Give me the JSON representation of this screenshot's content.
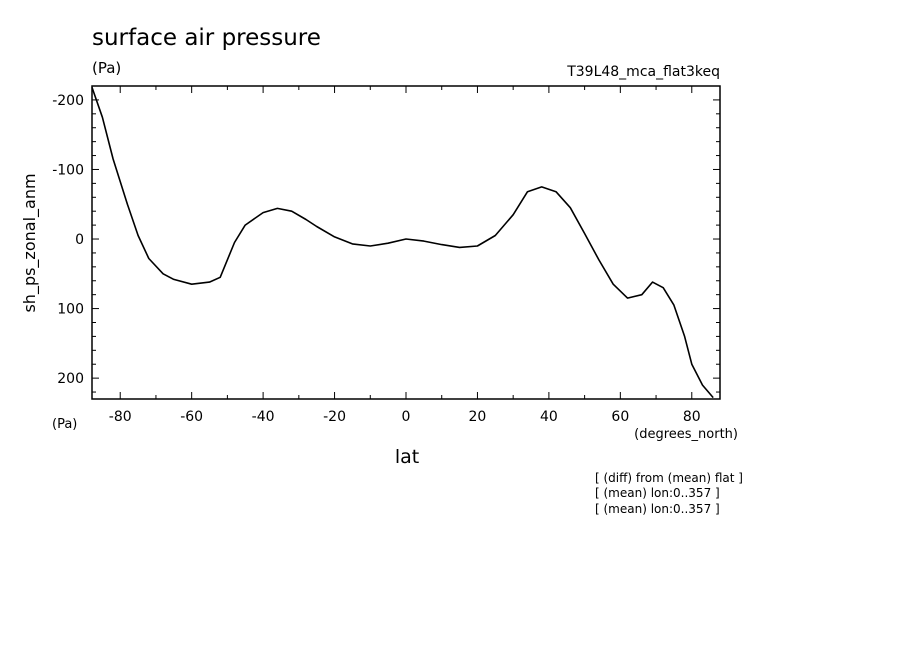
{
  "chart_data": {
    "type": "line",
    "title": "surface air pressure",
    "units_label": "(Pa)",
    "run_label": "T39L48_mca_flat3keq",
    "ylabel": "sh_ps_zonal_anm",
    "y_units": "(Pa)",
    "xlabel": "lat",
    "x_units": "(degrees_north)",
    "notes": [
      "[ (diff) from (mean) flat ]",
      "[ (mean) lon:0..357 ]",
      "[ (mean) lon:0..357 ]"
    ],
    "xlim": [
      -87.9,
      87.9
    ],
    "ylim": [
      230,
      -220
    ],
    "y_inverted": true,
    "xticks": [
      -80,
      -60,
      -40,
      -20,
      0,
      20,
      40,
      60,
      80
    ],
    "xtick_labels": [
      "-80",
      "-60",
      "-40",
      "-20",
      "0",
      "20",
      "40",
      "60",
      "80"
    ],
    "yticks": [
      -200,
      -100,
      0,
      100,
      200
    ],
    "ytick_labels": [
      "-200",
      "-100",
      "0",
      "100",
      "200"
    ],
    "series": [
      {
        "x": [
          -87.9,
          -85,
          -82,
          -78,
          -75,
          -72,
          -68,
          -65,
          -60,
          -55,
          -52,
          -48,
          -45,
          -40,
          -36,
          -32,
          -28,
          -25,
          -20,
          -15,
          -10,
          -5,
          0,
          5,
          10,
          15,
          20,
          25,
          30,
          34,
          38,
          42,
          46,
          50,
          54,
          58,
          62,
          66,
          69,
          72,
          75,
          78,
          80,
          83,
          86
        ],
        "y": [
          -218,
          -175,
          -115,
          -50,
          -5,
          28,
          50,
          58,
          65,
          62,
          55,
          5,
          -20,
          -38,
          -44,
          -40,
          -28,
          -18,
          -3,
          7,
          10,
          6,
          0,
          3,
          8,
          12,
          10,
          -5,
          -35,
          -68,
          -75,
          -68,
          -45,
          -8,
          30,
          65,
          85,
          80,
          62,
          70,
          95,
          140,
          180,
          210,
          228
        ]
      }
    ]
  }
}
